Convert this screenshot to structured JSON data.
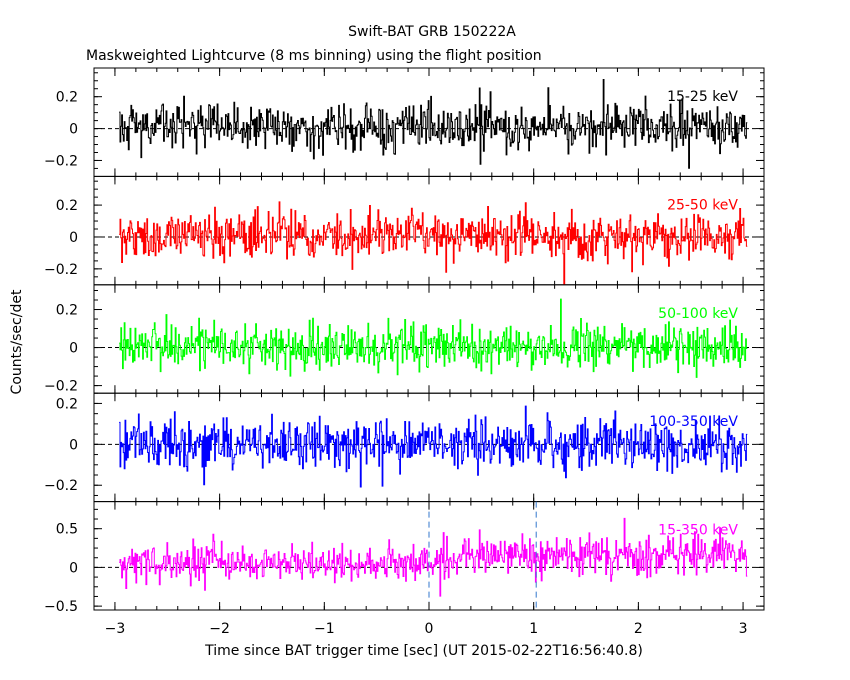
{
  "chart_data": {
    "type": "line",
    "title": "Swift-BAT GRB 150222A",
    "subtitle": "Maskweighted Lightcurve (8 ms binning) using the flight position",
    "xlabel": "Time since BAT trigger time [sec] (UT 2015-02-22T16:56:40.8)",
    "ylabel": "Counts/sec/det",
    "xlim": [
      -3.2,
      3.2
    ],
    "x_ticks": [
      "−3",
      "−2",
      "−1",
      "0",
      "1",
      "2",
      "3"
    ],
    "x_tick_values": [
      -3,
      -2,
      -1,
      0,
      1,
      2,
      3
    ],
    "time_range": [
      -2.96,
      3.04
    ],
    "bin_width_sec": 0.008,
    "zero_line": "dashed",
    "vertical_markers": [
      0,
      1.024
    ],
    "panels": [
      {
        "name": "15-25 keV",
        "color": "#000000",
        "ylim": [
          -0.3,
          0.38
        ],
        "yticks": [
          -0.2,
          0,
          0.2
        ],
        "ytick_labels": [
          "−0.2",
          "0",
          "0.2"
        ],
        "mean": 0.01,
        "rms": 0.075
      },
      {
        "name": "25-50 keV",
        "color": "#ff0000",
        "ylim": [
          -0.3,
          0.38
        ],
        "yticks": [
          -0.2,
          0,
          0.2
        ],
        "ytick_labels": [
          "−0.2",
          "0",
          "0.2"
        ],
        "mean": 0.01,
        "rms": 0.075
      },
      {
        "name": "50-100 keV",
        "color": "#00ff00",
        "ylim": [
          -0.24,
          0.33
        ],
        "yticks": [
          -0.2,
          0,
          0.2
        ],
        "ytick_labels": [
          "−0.2",
          "0",
          "0.2"
        ],
        "mean": 0.005,
        "rms": 0.06
      },
      {
        "name": "100-350 keV",
        "color": "#0000ff",
        "ylim": [
          -0.28,
          0.25
        ],
        "yticks": [
          -0.2,
          0,
          0.2
        ],
        "ytick_labels": [
          "−0.2",
          "0",
          "0.2"
        ],
        "mean": 0.0,
        "rms": 0.065
      },
      {
        "name": "15-350 keV",
        "color": "#ff00ff",
        "ylim": [
          -0.55,
          0.85
        ],
        "yticks": [
          -0.5,
          0,
          0.5
        ],
        "ytick_labels": [
          "−0.5",
          "0",
          "0.5"
        ],
        "mean": 0.05,
        "rms": 0.13,
        "rise_after_trigger": 0.1
      }
    ]
  }
}
